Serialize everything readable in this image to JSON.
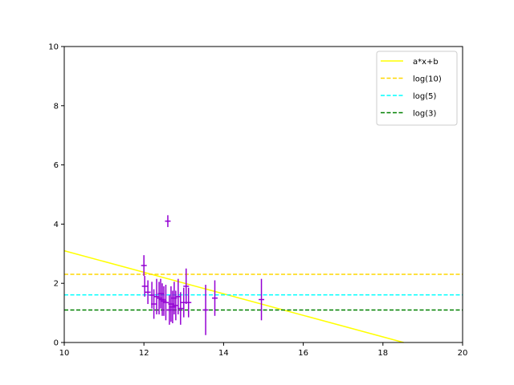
{
  "chart_data": {
    "type": "scatter",
    "title": "",
    "xlabel": "",
    "ylabel": "",
    "xlim": [
      10,
      20
    ],
    "ylim": [
      0,
      10
    ],
    "x_ticks": [
      10,
      12,
      14,
      16,
      18,
      20
    ],
    "y_ticks": [
      0,
      2,
      4,
      6,
      8,
      10
    ],
    "grid": false,
    "legend_position": "top-right",
    "points": {
      "color": "#9400d3",
      "x": [
        12.0,
        12.02,
        12.1,
        12.2,
        12.25,
        12.32,
        12.38,
        12.42,
        12.46,
        12.5,
        12.55,
        12.6,
        12.64,
        12.68,
        12.72,
        12.76,
        12.8,
        12.86,
        12.92,
        13.0,
        13.06,
        13.12,
        13.55,
        13.78,
        14.95
      ],
      "y": [
        2.6,
        1.9,
        1.7,
        1.6,
        1.3,
        1.55,
        1.5,
        1.65,
        1.45,
        1.4,
        1.35,
        4.1,
        1.1,
        1.3,
        1.2,
        1.5,
        1.25,
        1.55,
        1.15,
        1.35,
        1.9,
        1.35,
        1.1,
        1.5,
        1.45
      ],
      "yerr": [
        0.35,
        0.35,
        0.4,
        0.45,
        0.5,
        0.6,
        0.55,
        0.5,
        0.55,
        0.5,
        0.6,
        0.2,
        0.5,
        0.6,
        0.55,
        0.55,
        0.5,
        0.6,
        0.55,
        0.5,
        0.6,
        0.5,
        0.85,
        0.6,
        0.7
      ]
    },
    "series": [
      {
        "name": "a*x+b",
        "kind": "fit",
        "x": [
          10,
          18.52
        ],
        "y": [
          3.1,
          0.0
        ],
        "color": "#ffff00",
        "dash": "solid"
      },
      {
        "name": "log(10)",
        "kind": "hline",
        "value": 2.302585,
        "color": "#ffd700",
        "dash": "dashed"
      },
      {
        "name": "log(5)",
        "kind": "hline",
        "value": 1.609438,
        "color": "#00ffff",
        "dash": "dashed"
      },
      {
        "name": "log(3)",
        "kind": "hline",
        "value": 1.098612,
        "color": "#008000",
        "dash": "dashed"
      }
    ]
  }
}
